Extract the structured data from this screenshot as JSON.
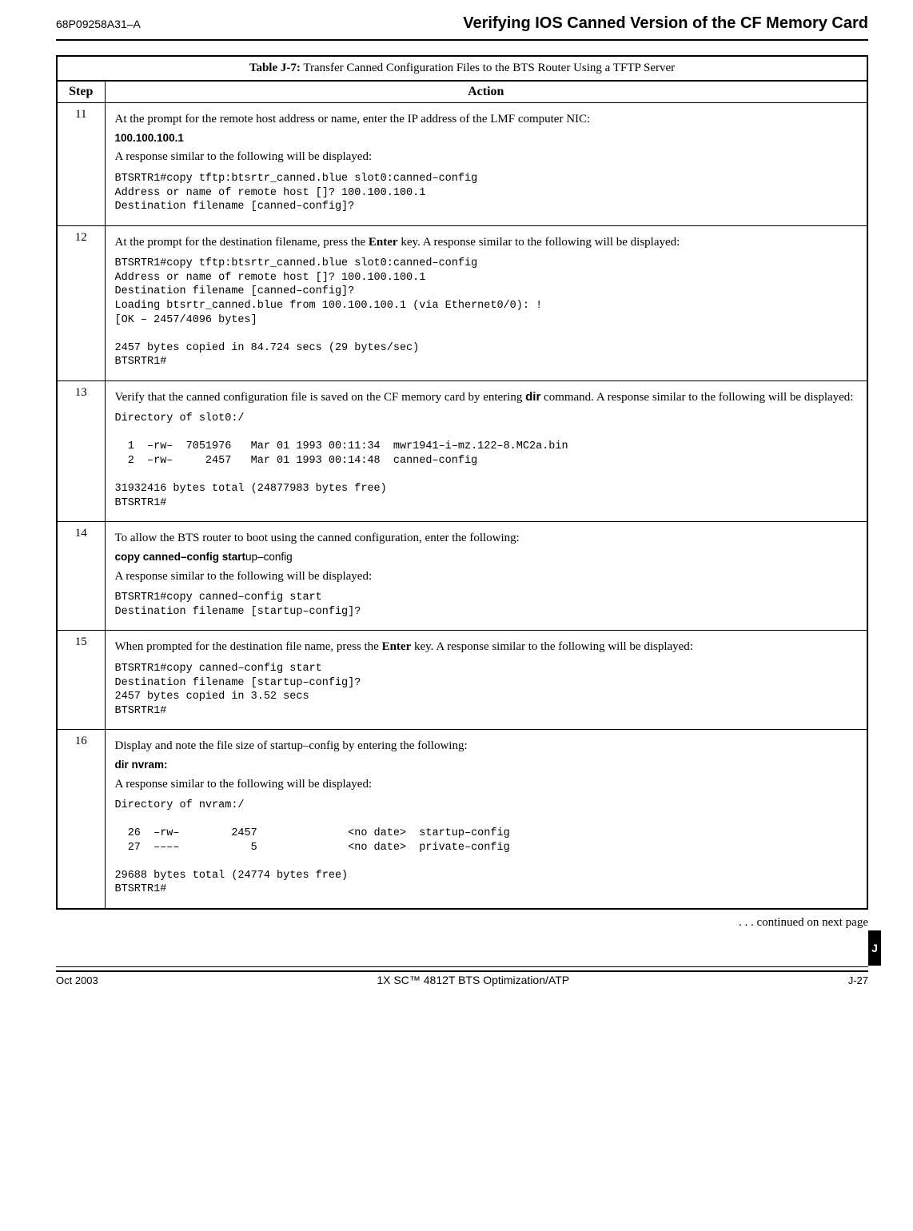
{
  "header": {
    "doc_id": "68P09258A31–A",
    "page_title": "Verifying IOS Canned Version of the CF Memory Card"
  },
  "table": {
    "caption_prefix": "Table J-7:",
    "caption_rest": " Transfer Canned Configuration Files to the BTS Router Using a TFTP Server",
    "step_header": "Step",
    "action_header": "Action"
  },
  "rows": {
    "r11": {
      "step": "11",
      "p1": "At the prompt for the remote host address or name, enter the IP address of the LMF computer NIC:",
      "cmd": "100.100.100.1",
      "p2": "A response similar to the following will be displayed:",
      "code": "BTSRTR1#copy tftp:btsrtr_canned.blue slot0:canned–config\nAddress or name of remote host []? 100.100.100.1\nDestination filename [canned–config]?"
    },
    "r12": {
      "step": "12",
      "p1a": "At the prompt for the destination filename, press the ",
      "p1b": "Enter",
      "p1c": " key. A response similar to the following will be displayed:",
      "code": "BTSRTR1#copy tftp:btsrtr_canned.blue slot0:canned–config\nAddress or name of remote host []? 100.100.100.1\nDestination filename [canned–config]?\nLoading btsrtr_canned.blue from 100.100.100.1 (via Ethernet0/0): !\n[OK – 2457/4096 bytes]\n\n2457 bytes copied in 84.724 secs (29 bytes/sec)\nBTSRTR1#"
    },
    "r13": {
      "step": "13",
      "p1a": "Verify that the canned configuration file is saved on the CF memory card by entering ",
      "p1b": "dir",
      "p1c": " command.  A response similar to the following will be displayed:",
      "code": "Directory of slot0:/\n\n  1  –rw–  7051976   Mar 01 1993 00:11:34  mwr1941–i–mz.122–8.MC2a.bin\n  2  –rw–     2457   Mar 01 1993 00:14:48  canned–config\n\n31932416 bytes total (24877983 bytes free)\nBTSRTR1#"
    },
    "r14": {
      "step": "14",
      "p1": "To allow the BTS router to boot using the canned configuration, enter the following:",
      "cmd_bold": "copy canned–config  start",
      "cmd_tail": "up–config",
      "p2": "A response similar to the following will be displayed:",
      "code": "BTSRTR1#copy canned–config start\nDestination filename [startup–config]?"
    },
    "r15": {
      "step": "15",
      "p1a": "When prompted for the destination file name, press the ",
      "p1b": "Enter",
      "p1c": " key. A response similar to the following will be displayed:",
      "code": "BTSRTR1#copy canned–config start\nDestination filename [startup–config]?\n2457 bytes copied in 3.52 secs\nBTSRTR1#"
    },
    "r16": {
      "step": "16",
      "p1": "Display and note the file size of startup–config by entering the following:",
      "cmd": "dir  nvram:",
      "p2": "A response similar to the following will be displayed:",
      "code": "Directory of nvram:/\n\n  26  –rw–        2457              <no date>  startup–config\n  27  ––––           5              <no date>  private–config\n\n29688 bytes total (24774 bytes free)\nBTSRTR1#"
    }
  },
  "continued": ". . . continued on next page",
  "footer": {
    "left": "Oct 2003",
    "center": "1X SC™ 4812T BTS Optimization/ATP",
    "right": "J-27"
  },
  "tab": "J"
}
